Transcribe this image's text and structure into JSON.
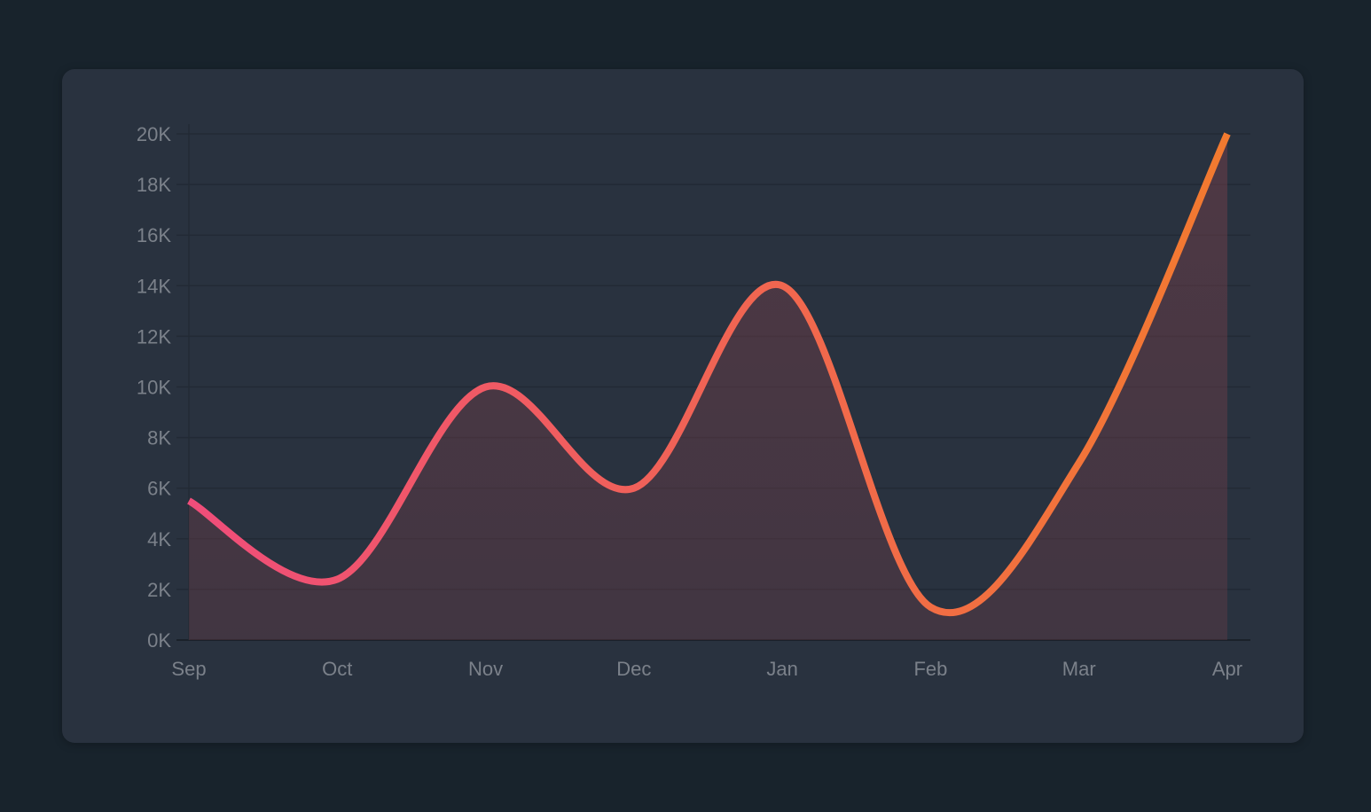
{
  "chart_data": {
    "type": "area",
    "categories": [
      "Sep",
      "Oct",
      "Nov",
      "Dec",
      "Jan",
      "Feb",
      "Mar",
      "Apr"
    ],
    "series": [
      {
        "values": [
          5500,
          2400,
          10000,
          6000,
          14000,
          1300,
          7000,
          20000
        ]
      }
    ],
    "ylim": [
      0,
      20000
    ],
    "yticks": [
      "0K",
      "2K",
      "4K",
      "6K",
      "8K",
      "10K",
      "12K",
      "14K",
      "16K",
      "18K",
      "20K"
    ],
    "grid": true,
    "legend": "none",
    "line_gradient": [
      "#ef4d7a",
      "#f27a2f"
    ],
    "area_fill": "#6e3d48",
    "colors": {
      "background": "#18232c",
      "card": "#29323f",
      "gridline": "#222a35",
      "tick_label": "#7b818a"
    }
  }
}
